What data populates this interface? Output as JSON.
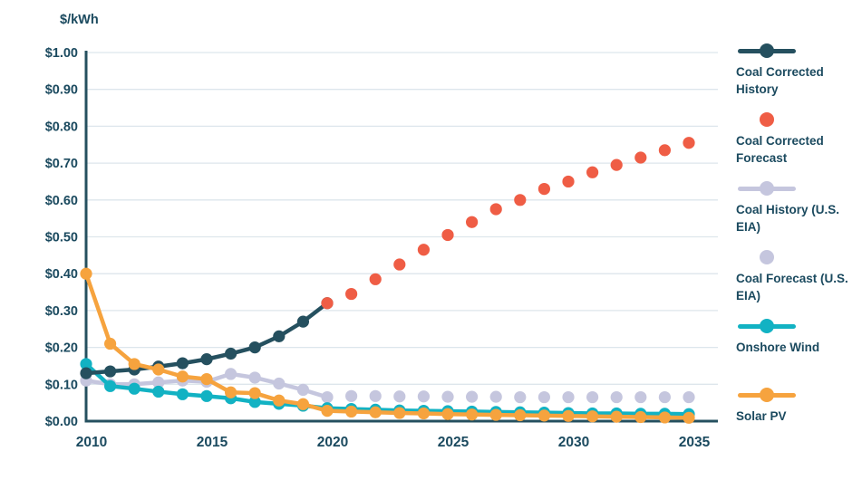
{
  "figure": {
    "ylabel": "$/kWh"
  },
  "legend": [
    {
      "label": "Coal Corrected History",
      "marker": "line-dot",
      "color": "#25505f"
    },
    {
      "label": "Coal Corrected Forecast",
      "marker": "dot",
      "color": "#ef5d45"
    },
    {
      "label": "Coal History (U.S. EIA)",
      "marker": "line-dot",
      "color": "#c5c6de"
    },
    {
      "label": "Coal Forecast (U.S. EIA)",
      "marker": "dot",
      "color": "#c5c6de"
    },
    {
      "label": "Onshore Wind",
      "marker": "line-dot",
      "color": "#12b2c3"
    },
    {
      "label": "Solar PV",
      "marker": "line-dot",
      "color": "#f6a33e"
    }
  ],
  "chart_data": {
    "type": "line",
    "title": "",
    "xlabel": "",
    "ylabel": "$/kWh",
    "ylim": [
      0,
      1.0
    ],
    "xlim": [
      2010,
      2035
    ],
    "grid": true,
    "legend_position": "right",
    "ytick_values": [
      1.0,
      0.9,
      0.8,
      0.7,
      0.6,
      0.5,
      0.4,
      0.3,
      0.2,
      0.1,
      0.0
    ],
    "ytick_labels": [
      "$1.00",
      "$0.90",
      "$0.80",
      "$0.70",
      "$0.60",
      "$0.50",
      "$0.40",
      "$0.30",
      "$0.20",
      "$0.10",
      "$0.00"
    ],
    "xtick_values": [
      2010,
      2015,
      2020,
      2025,
      2030,
      2035
    ],
    "xtick_labels": [
      "2010",
      "2015",
      "2020",
      "2025",
      "2030",
      "2035"
    ],
    "draw_order": [
      2,
      3,
      4,
      0,
      1,
      5
    ],
    "series": [
      {
        "name": "Coal Corrected History",
        "color": "#25505f",
        "style": "line+markers",
        "x": [
          2010,
          2011,
          2012,
          2013,
          2014,
          2015,
          2016,
          2017,
          2018,
          2019,
          2020
        ],
        "values": [
          0.13,
          0.135,
          0.14,
          0.148,
          0.157,
          0.168,
          0.183,
          0.2,
          0.23,
          0.27,
          0.32
        ]
      },
      {
        "name": "Coal Corrected Forecast",
        "color": "#ef5d45",
        "style": "markers",
        "x": [
          2020,
          2021,
          2022,
          2023,
          2024,
          2025,
          2026,
          2027,
          2028,
          2029,
          2030,
          2031,
          2032,
          2033,
          2034,
          2035
        ],
        "values": [
          0.32,
          0.345,
          0.385,
          0.425,
          0.465,
          0.505,
          0.54,
          0.575,
          0.6,
          0.63,
          0.65,
          0.675,
          0.695,
          0.715,
          0.735,
          0.755
        ]
      },
      {
        "name": "Coal History (U.S. EIA)",
        "color": "#c5c6de",
        "style": "line+markers",
        "x": [
          2010,
          2011,
          2012,
          2013,
          2014,
          2015,
          2016,
          2017,
          2018,
          2019,
          2020
        ],
        "values": [
          0.11,
          0.1,
          0.1,
          0.105,
          0.11,
          0.107,
          0.128,
          0.118,
          0.102,
          0.085,
          0.065
        ]
      },
      {
        "name": "Coal Forecast (U.S. EIA)",
        "color": "#c5c6de",
        "style": "markers",
        "x": [
          2021,
          2022,
          2023,
          2024,
          2025,
          2026,
          2027,
          2028,
          2029,
          2030,
          2031,
          2032,
          2033,
          2034,
          2035
        ],
        "values": [
          0.068,
          0.068,
          0.067,
          0.067,
          0.066,
          0.066,
          0.066,
          0.065,
          0.065,
          0.065,
          0.065,
          0.065,
          0.065,
          0.065,
          0.065
        ]
      },
      {
        "name": "Onshore Wind",
        "color": "#12b2c3",
        "style": "line+markers",
        "x": [
          2010,
          2011,
          2012,
          2013,
          2014,
          2015,
          2016,
          2017,
          2018,
          2019,
          2020,
          2021,
          2022,
          2023,
          2024,
          2025,
          2026,
          2027,
          2028,
          2029,
          2030,
          2031,
          2032,
          2033,
          2034,
          2035
        ],
        "values": [
          0.155,
          0.095,
          0.088,
          0.08,
          0.073,
          0.068,
          0.062,
          0.052,
          0.047,
          0.042,
          0.035,
          0.033,
          0.031,
          0.029,
          0.028,
          0.027,
          0.026,
          0.025,
          0.024,
          0.023,
          0.022,
          0.021,
          0.021,
          0.02,
          0.02,
          0.019
        ]
      },
      {
        "name": "Solar PV",
        "color": "#f6a33e",
        "style": "line+markers",
        "x": [
          2010,
          2011,
          2012,
          2013,
          2014,
          2015,
          2016,
          2017,
          2018,
          2019,
          2020,
          2021,
          2022,
          2023,
          2024,
          2025,
          2026,
          2027,
          2028,
          2029,
          2030,
          2031,
          2032,
          2033,
          2034,
          2035
        ],
        "values": [
          0.4,
          0.21,
          0.155,
          0.14,
          0.121,
          0.114,
          0.078,
          0.076,
          0.056,
          0.046,
          0.028,
          0.026,
          0.024,
          0.022,
          0.021,
          0.019,
          0.018,
          0.017,
          0.016,
          0.015,
          0.014,
          0.013,
          0.012,
          0.011,
          0.01,
          0.009
        ]
      }
    ]
  }
}
